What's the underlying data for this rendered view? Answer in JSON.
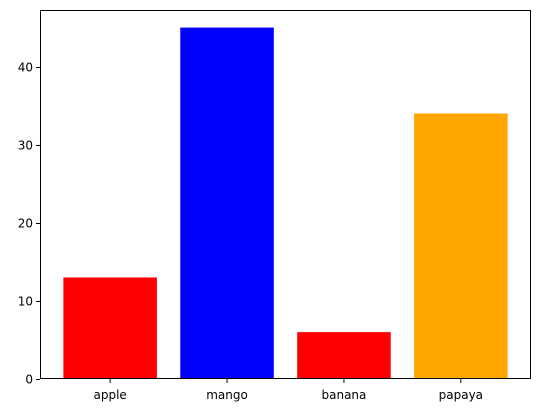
{
  "chart_data": {
    "type": "bar",
    "categories": [
      "apple",
      "mango",
      "banana",
      "papaya"
    ],
    "values": [
      13,
      45,
      6,
      34
    ],
    "colors": [
      "#ff0000",
      "#0000ff",
      "#ff0000",
      "#ffa500"
    ],
    "title": "",
    "xlabel": "",
    "ylabel": "",
    "ylim": [
      0,
      47.25
    ],
    "yticks": [
      0,
      10,
      20,
      30,
      40
    ],
    "grid": false,
    "legend": "none"
  }
}
